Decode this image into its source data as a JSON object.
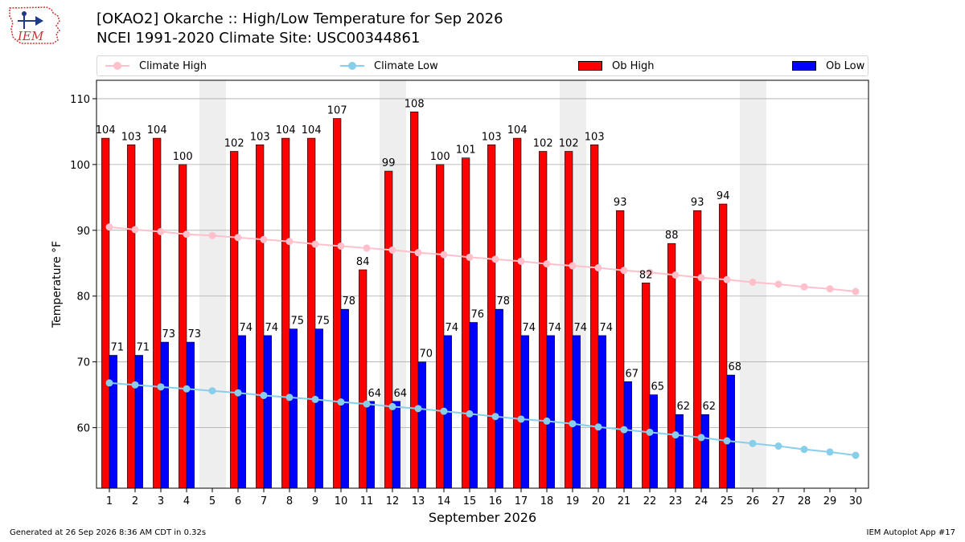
{
  "title": {
    "line1": "[OKAO2] Okarche :: High/Low Temperature for Sep 2026",
    "line2": "NCEI 1991-2020 Climate Site: USC00344861"
  },
  "logo": {
    "text": "IEM"
  },
  "legend": {
    "climate_high": "Climate High",
    "climate_low": "Climate Low",
    "ob_high": "Ob High",
    "ob_low": "Ob Low"
  },
  "colors": {
    "ob_high": "#ff0000",
    "ob_low": "#0000ff",
    "climate_high": "#ffc0cb",
    "climate_low": "#87ceeb",
    "weekend_shade": "#eeeeee",
    "grid": "#aaaaaa"
  },
  "footer": {
    "generated": "Generated at 26 Sep 2026 8:36 AM CDT in 0.32s",
    "app": "IEM Autoplot App #17"
  },
  "chart_data": {
    "type": "bar",
    "xlabel": "September 2026",
    "ylabel": "Temperature °F",
    "ylim": [
      50.8,
      112.8
    ],
    "yticks": [
      60,
      70,
      80,
      90,
      100,
      110
    ],
    "xlim": [
      0.5,
      30.5
    ],
    "categories": [
      "1",
      "2",
      "3",
      "4",
      "5",
      "6",
      "7",
      "8",
      "9",
      "10",
      "11",
      "12",
      "13",
      "14",
      "15",
      "16",
      "17",
      "18",
      "19",
      "20",
      "21",
      "22",
      "23",
      "24",
      "25",
      "26",
      "27",
      "28",
      "29",
      "30"
    ],
    "shaded_days": [
      5,
      12,
      19,
      26
    ],
    "grid": "horizontal",
    "legend_position": "top",
    "series": [
      {
        "name": "Ob High",
        "kind": "bar",
        "values": [
          104,
          103,
          104,
          100,
          null,
          102,
          103,
          104,
          104,
          107,
          84,
          99,
          108,
          100,
          101,
          103,
          104,
          102,
          102,
          103,
          93,
          82,
          88,
          93,
          94,
          null,
          null,
          null,
          null,
          null
        ]
      },
      {
        "name": "Ob Low",
        "kind": "bar",
        "values": [
          71,
          71,
          73,
          73,
          null,
          74,
          74,
          75,
          75,
          78,
          64,
          64,
          70,
          74,
          76,
          78,
          74,
          74,
          74,
          74,
          67,
          65,
          62,
          62,
          68,
          null,
          null,
          null,
          null,
          null
        ]
      },
      {
        "name": "Climate High",
        "kind": "line",
        "values": [
          90.5,
          90.1,
          89.8,
          89.4,
          89.2,
          88.9,
          88.6,
          88.3,
          87.9,
          87.6,
          87.3,
          87.0,
          86.6,
          86.3,
          85.9,
          85.6,
          85.3,
          84.9,
          84.6,
          84.3,
          83.9,
          83.6,
          83.2,
          82.8,
          82.5,
          82.1,
          81.8,
          81.4,
          81.1,
          80.7
        ]
      },
      {
        "name": "Climate Low",
        "kind": "line",
        "values": [
          66.8,
          66.5,
          66.2,
          65.9,
          65.6,
          65.3,
          64.9,
          64.6,
          64.3,
          63.9,
          63.6,
          63.2,
          62.9,
          62.5,
          62.1,
          61.7,
          61.3,
          61.0,
          60.6,
          60.1,
          59.7,
          59.3,
          58.9,
          58.5,
          58.0,
          57.6,
          57.2,
          56.7,
          56.3,
          55.8
        ]
      }
    ]
  }
}
